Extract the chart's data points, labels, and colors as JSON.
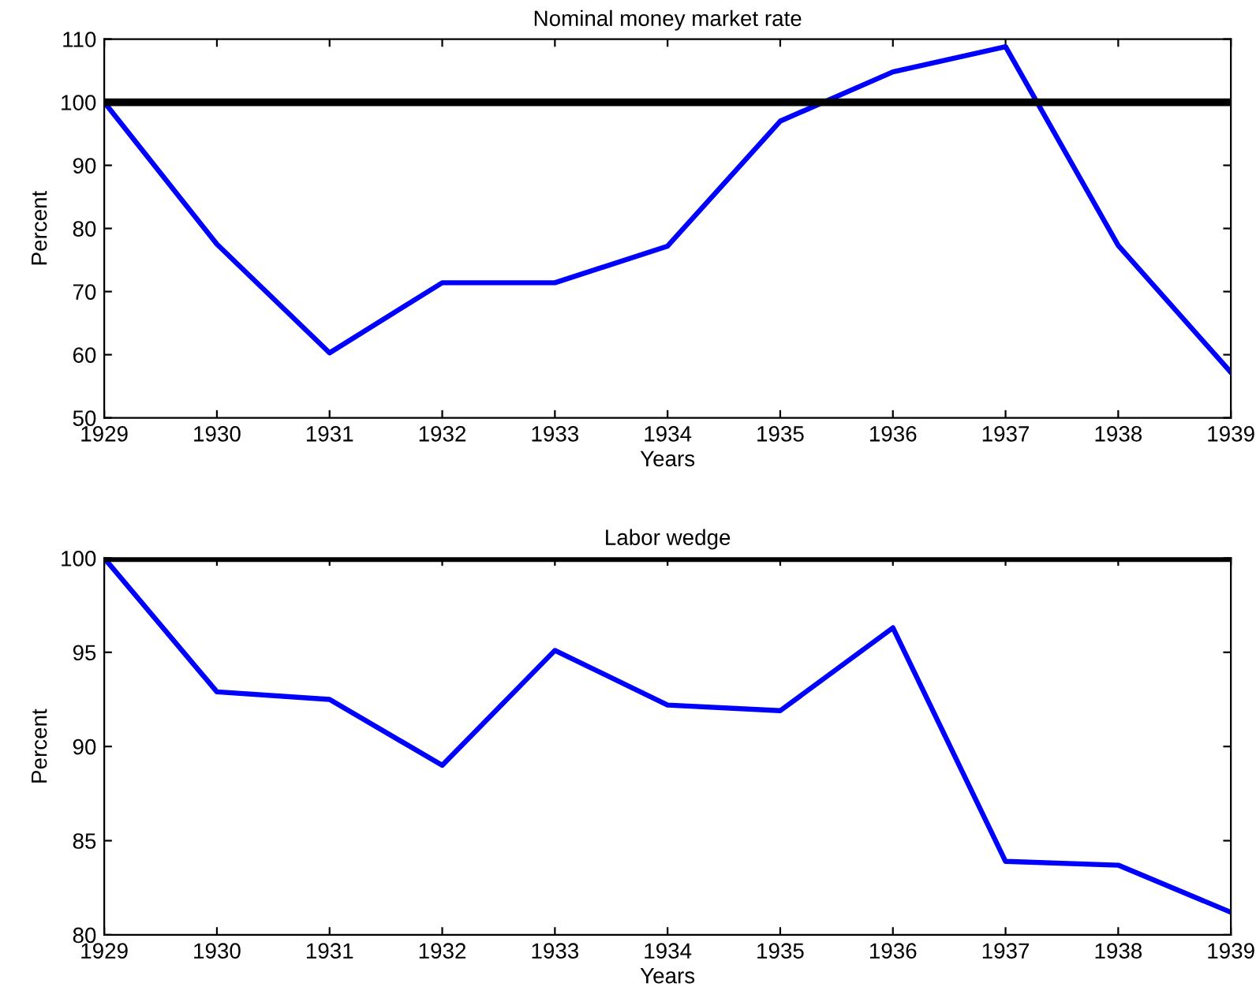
{
  "chart_data": [
    {
      "type": "line",
      "title": "Nominal money market rate",
      "xlabel": "Years",
      "ylabel": "Percent",
      "x": [
        1929,
        1930,
        1931,
        1932,
        1933,
        1934,
        1935,
        1936,
        1937,
        1938,
        1939
      ],
      "series": [
        {
          "color": "#0000ff",
          "values": [
            100,
            77.5,
            60.3,
            71.4,
            71.4,
            77.2,
            97,
            104.8,
            108.8,
            77.3,
            57.2
          ]
        }
      ],
      "xlim": [
        1929,
        1939
      ],
      "xticks": [
        1929,
        1930,
        1931,
        1932,
        1933,
        1934,
        1935,
        1936,
        1937,
        1938,
        1939
      ],
      "ylim": [
        50,
        110
      ],
      "yticks": [
        50,
        60,
        70,
        80,
        90,
        100,
        110
      ],
      "ref_lines": [
        {
          "axis": "y",
          "value": 100,
          "color": "#000000"
        }
      ],
      "grid": false,
      "legend": false
    },
    {
      "type": "line",
      "title": "Labor wedge",
      "xlabel": "Years",
      "ylabel": "Percent",
      "x": [
        1929,
        1930,
        1931,
        1932,
        1933,
        1934,
        1935,
        1936,
        1937,
        1938,
        1939
      ],
      "series": [
        {
          "color": "#0000ff",
          "values": [
            100,
            92.9,
            92.5,
            89.0,
            95.1,
            92.2,
            91.9,
            96.3,
            83.9,
            83.7,
            81.2
          ]
        }
      ],
      "xlim": [
        1929,
        1939
      ],
      "xticks": [
        1929,
        1930,
        1931,
        1932,
        1933,
        1934,
        1935,
        1936,
        1937,
        1938,
        1939
      ],
      "ylim": [
        80,
        100
      ],
      "yticks": [
        80,
        85,
        90,
        95,
        100
      ],
      "ref_lines": [
        {
          "axis": "y",
          "value": 100,
          "color": "#000000"
        }
      ],
      "grid": false,
      "legend": false
    }
  ]
}
